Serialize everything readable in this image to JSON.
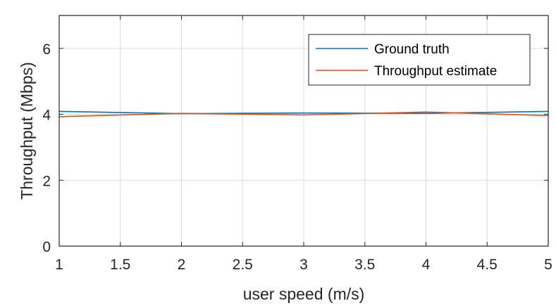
{
  "chart_data": {
    "type": "line",
    "title": "",
    "xlabel": "user speed (m/s)",
    "ylabel": "Throughput (Mbps)",
    "xlim": [
      1,
      5
    ],
    "ylim": [
      0,
      7
    ],
    "xticks": [
      "1",
      "1.5",
      "2",
      "2.5",
      "3",
      "3.5",
      "4",
      "4.5",
      "5"
    ],
    "yticks": [
      "0",
      "2",
      "4",
      "6"
    ],
    "xtick_values": [
      1,
      1.5,
      2,
      2.5,
      3,
      3.5,
      4,
      4.5,
      5
    ],
    "ytick_values": [
      0,
      2,
      4,
      6
    ],
    "grid": true,
    "legend_position": "top-right",
    "series": [
      {
        "name": "Ground truth",
        "color": "#0072BD",
        "x": [
          1,
          2,
          3,
          4,
          5
        ],
        "y": [
          4.09,
          4.02,
          4.04,
          4.03,
          4.09
        ]
      },
      {
        "name": "Throughput estimate",
        "color": "#D95319",
        "x": [
          1,
          2,
          3,
          4,
          5
        ],
        "y": [
          3.93,
          4.03,
          3.98,
          4.07,
          3.96
        ]
      }
    ]
  }
}
